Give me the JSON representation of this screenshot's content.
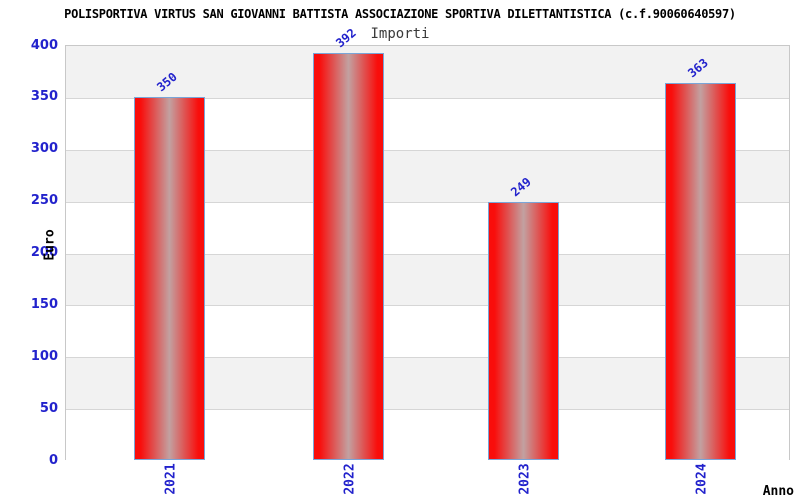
{
  "chart_data": {
    "type": "bar",
    "title": "POLISPORTIVA VIRTUS SAN GIOVANNI BATTISTA ASSOCIAZIONE SPORTIVA DILETTANTISTICA (c.f.90060640597)",
    "subtitle": "Importi",
    "xlabel": "Anno",
    "ylabel": "Euro",
    "categories": [
      "2021",
      "2022",
      "2023",
      "2024"
    ],
    "values": [
      350,
      392,
      249,
      363
    ],
    "ylim": [
      0,
      400
    ],
    "ytick_step": 50,
    "ytick_labels": [
      "0",
      "50",
      "100",
      "150",
      "200",
      "250",
      "300",
      "350",
      "400"
    ],
    "legend_position": "none",
    "grid": "horizontal bands, alternating gray/white every 50 units",
    "colors": {
      "bar_edge_red": "#f90d0b",
      "bar_center": "#c2a1a1",
      "bar_border": "#79a5d8",
      "axis_text_blue": "#2222cc",
      "band_gray": "#f2f2f2",
      "band_white": "#ffffff",
      "gridline": "#d6d6d6",
      "plot_border": "#c8c8c8",
      "title_color": "#000000",
      "subtitle_color": "#3a3a3a",
      "background": "#ffffff"
    }
  }
}
